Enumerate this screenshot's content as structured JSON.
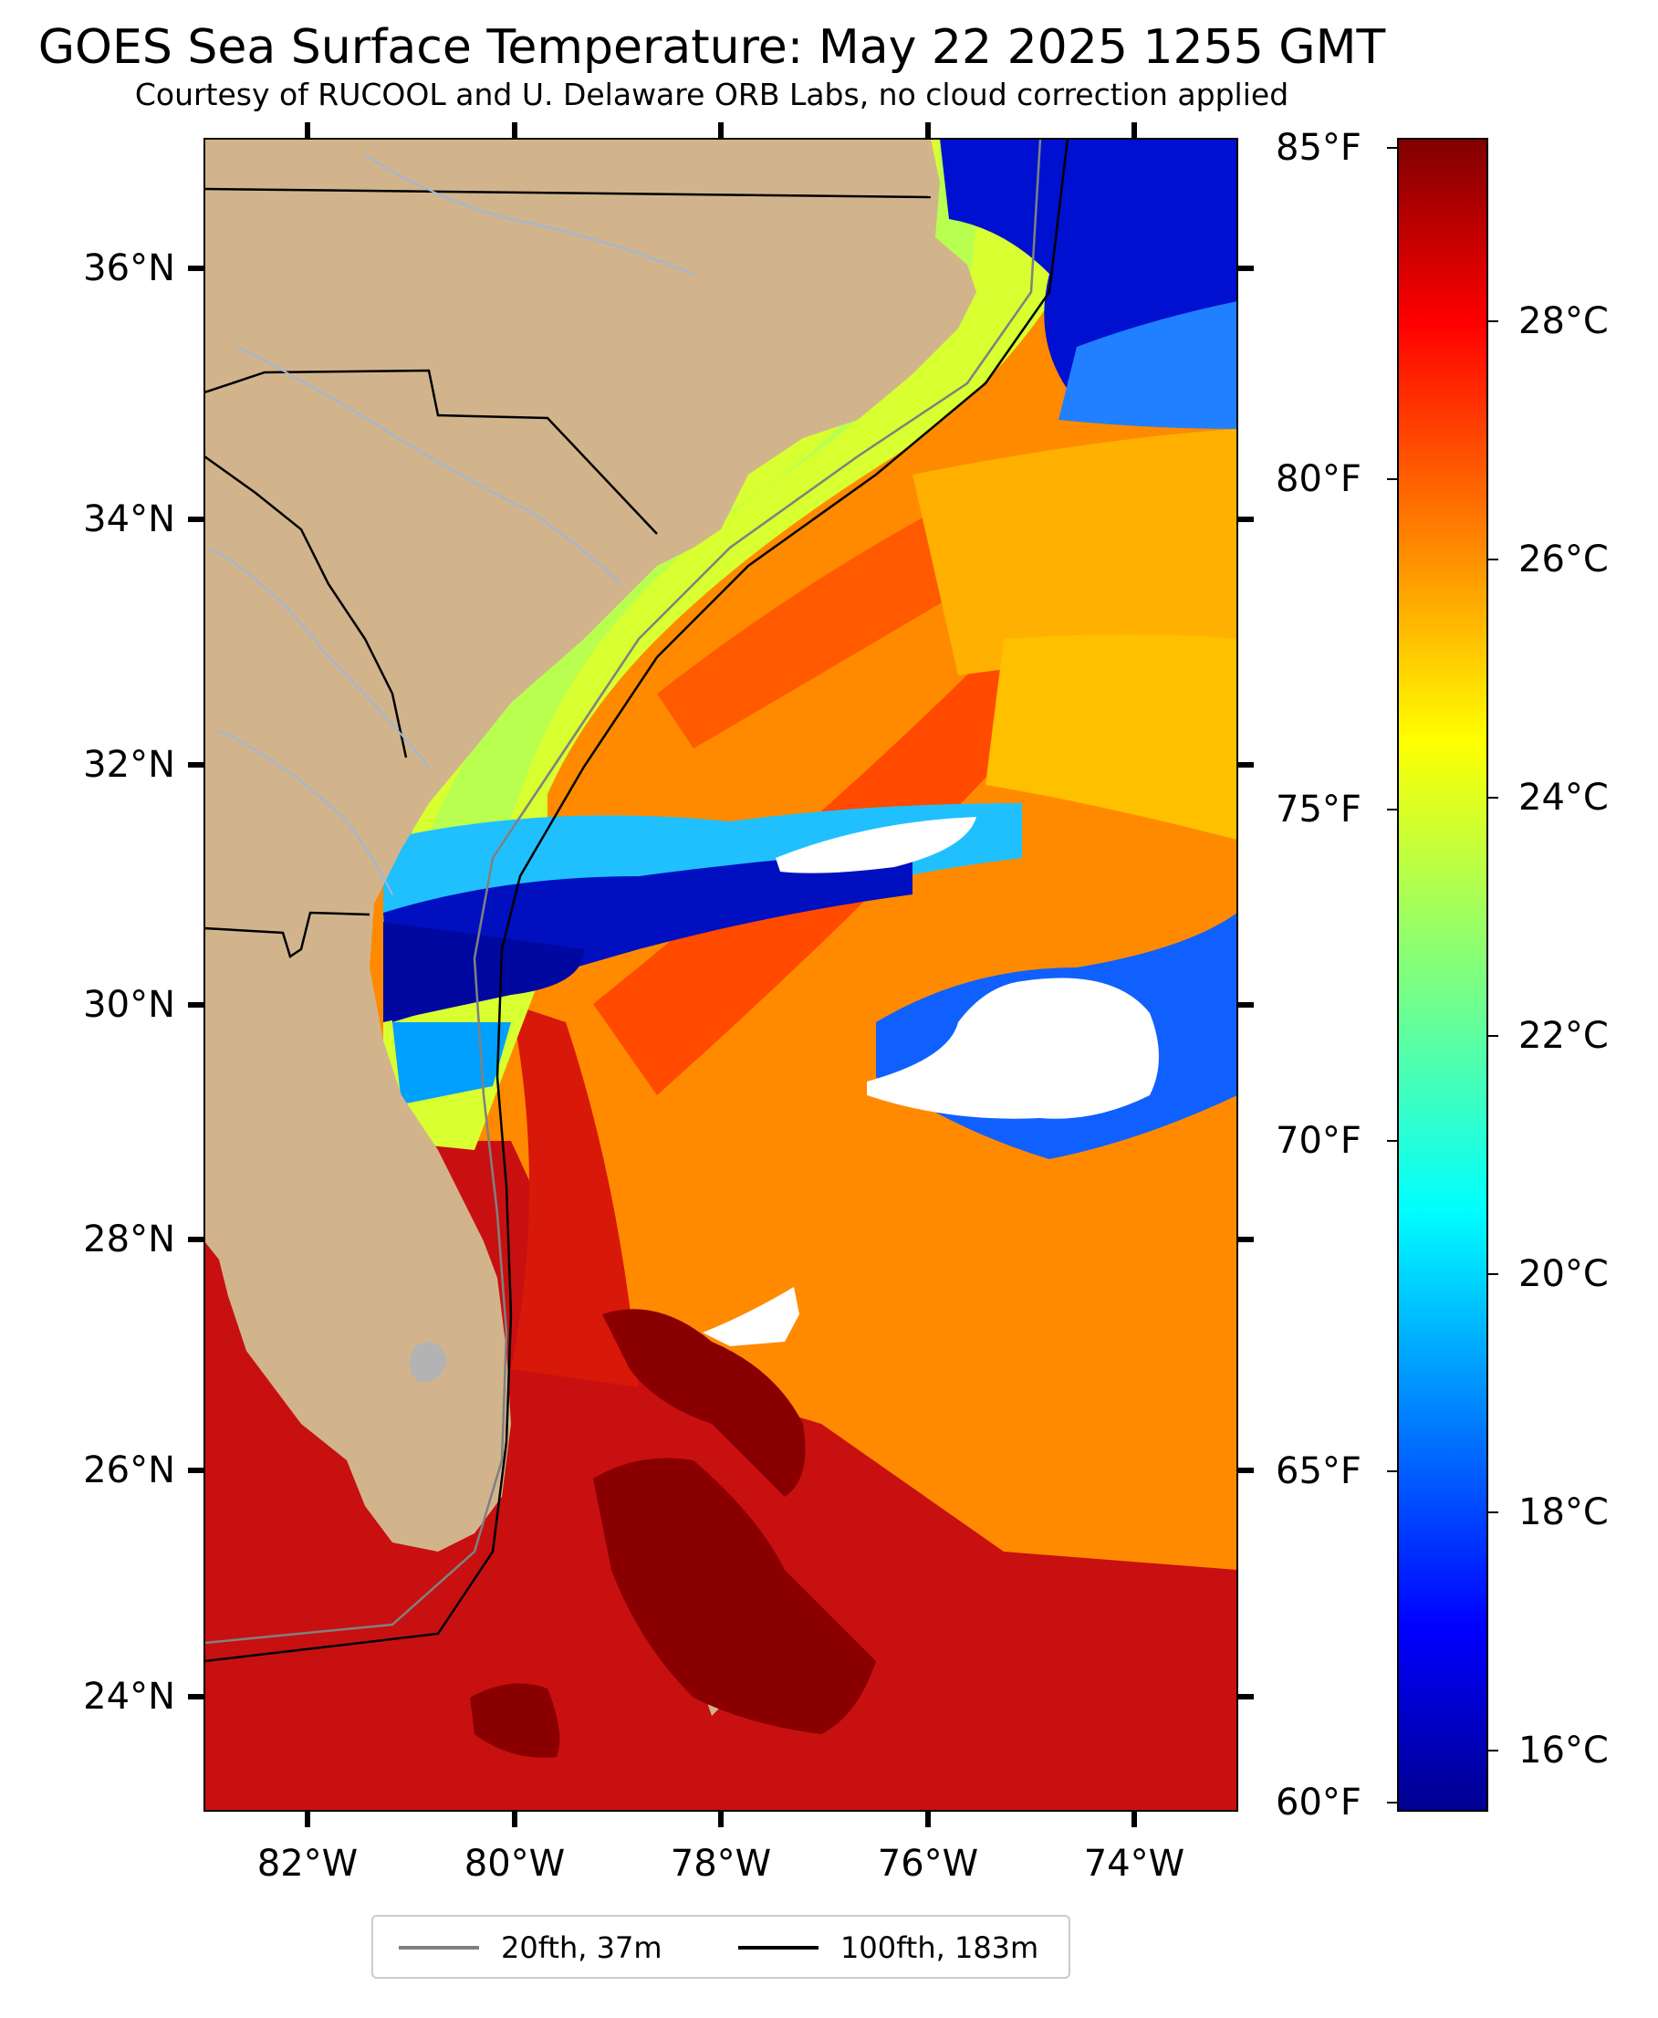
{
  "title": "GOES Sea Surface Temperature: May 22 2025 1255 GMT",
  "subtitle": "Courtesy of RUCOOL and U. Delaware ORB Labs, no cloud correction applied",
  "map": {
    "lon_range": [
      -83,
      -73
    ],
    "lat_range": [
      23.2,
      37
    ],
    "lat_ticks": [
      {
        "value": 36,
        "label": "36°N"
      },
      {
        "value": 34,
        "label": "34°N"
      },
      {
        "value": 32,
        "label": "32°N"
      },
      {
        "value": 30,
        "label": "30°N"
      },
      {
        "value": 28,
        "label": "28°N"
      },
      {
        "value": 26,
        "label": "26°N"
      },
      {
        "value": 24,
        "label": "24°N"
      }
    ],
    "lon_ticks": [
      {
        "value": -82,
        "label": "82°W"
      },
      {
        "value": -80,
        "label": "80°W"
      },
      {
        "value": -78,
        "label": "78°W"
      },
      {
        "value": -76,
        "label": "76°W"
      },
      {
        "value": -74,
        "label": "74°W"
      }
    ],
    "colors": {
      "land": "#d2b48c",
      "state_border": "#000000",
      "river": "#9fb6d8",
      "clouds": "#ffffff",
      "lake": "#b3b3b3"
    }
  },
  "colorbar": {
    "colormap": "jet",
    "range_c": [
      15.6,
      29.4
    ],
    "fahrenheit_ticks": [
      {
        "value": 85,
        "label": "85°F"
      },
      {
        "value": 80,
        "label": "80°F"
      },
      {
        "value": 75,
        "label": "75°F"
      },
      {
        "value": 70,
        "label": "70°F"
      },
      {
        "value": 65,
        "label": "65°F"
      },
      {
        "value": 60,
        "label": "60°F"
      }
    ],
    "celsius_ticks": [
      {
        "value": 28,
        "label": "28°C"
      },
      {
        "value": 26,
        "label": "26°C"
      },
      {
        "value": 24,
        "label": "24°C"
      },
      {
        "value": 22,
        "label": "22°C"
      },
      {
        "value": 20,
        "label": "20°C"
      },
      {
        "value": 18,
        "label": "18°C"
      },
      {
        "value": 16,
        "label": "16°C"
      }
    ]
  },
  "legend": {
    "items": [
      {
        "label": "20fth, 37m",
        "color": "#808080"
      },
      {
        "label": "100fth, 183m",
        "color": "#000000"
      }
    ]
  }
}
